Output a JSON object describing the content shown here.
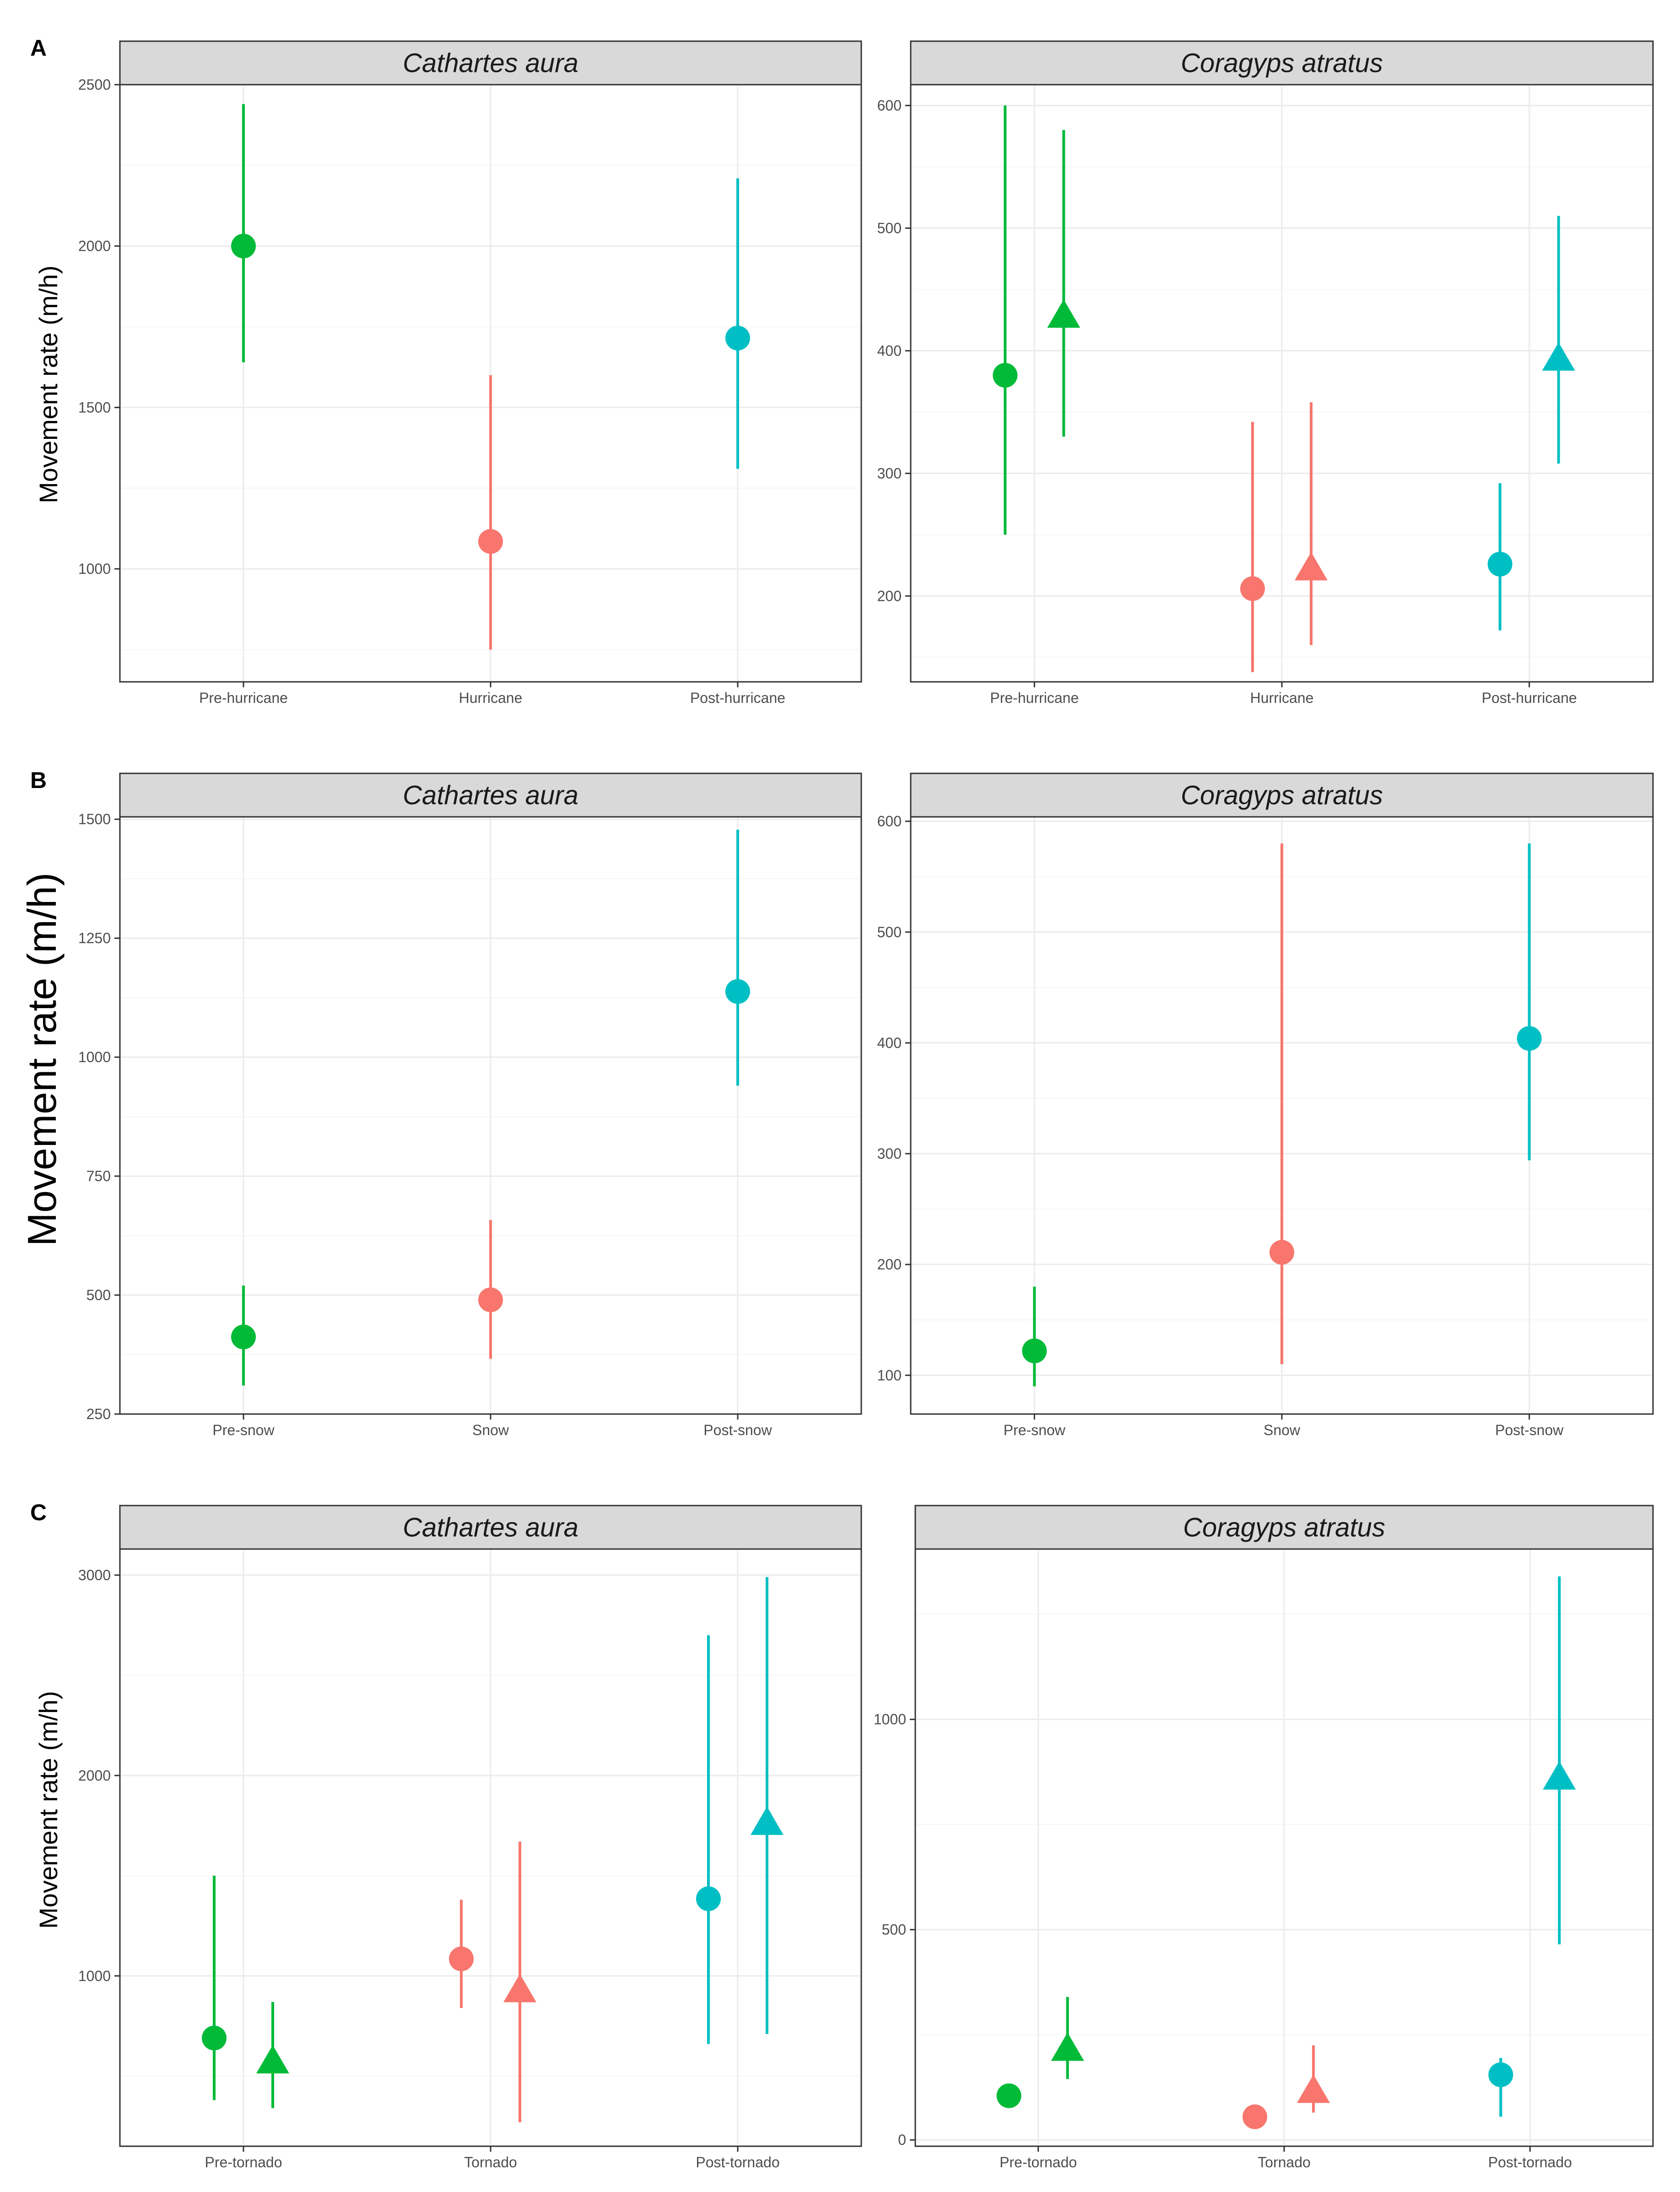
{
  "figure": {
    "row_labels": [
      "A",
      "B",
      "C"
    ],
    "ylabel_small": "Movement rate (m/h)",
    "ylabel_large": "Movement rate (m/h)"
  },
  "colors": {
    "pre": "#00BA38",
    "event": "#F8766D",
    "post": "#00BFC4",
    "strip_bg": "#D9D9D9",
    "panel_border": "#333333",
    "grid_major": "#EBEBEB",
    "grid_minor": "#F5F5F5",
    "tick_text": "#4D4D4D"
  },
  "chart_data": [
    {
      "type": "scatter",
      "subtype": "pointrange",
      "row": "A",
      "title": "Cathartes aura",
      "categories": [
        "Pre-hurricane",
        "Hurricane",
        "Post-hurricane"
      ],
      "ylim": [
        650,
        2500
      ],
      "yticks": [
        1000,
        1500,
        2000,
        2500
      ],
      "grid": true,
      "series": [
        {
          "shape": "circle",
          "points": [
            {
              "category": 0,
              "y": 2000,
              "lo": 1640,
              "hi": 2440
            },
            {
              "category": 1,
              "y": 1085,
              "lo": 750,
              "hi": 1600
            },
            {
              "category": 2,
              "y": 1715,
              "lo": 1310,
              "hi": 2210
            }
          ]
        }
      ]
    },
    {
      "type": "scatter",
      "subtype": "pointrange",
      "row": "A",
      "title": "Coragyps atratus",
      "categories": [
        "Pre-hurricane",
        "Hurricane",
        "Post-hurricane"
      ],
      "ylim": [
        130,
        617
      ],
      "yticks": [
        200,
        300,
        400,
        500,
        600
      ],
      "grid": true,
      "series": [
        {
          "shape": "circle",
          "points": [
            {
              "category": 0,
              "y": 380,
              "lo": 250,
              "hi": 600
            },
            {
              "category": 1,
              "y": 206,
              "lo": 138,
              "hi": 342
            },
            {
              "category": 2,
              "y": 226,
              "lo": 172,
              "hi": 292
            }
          ]
        },
        {
          "shape": "triangle",
          "points": [
            {
              "category": 0,
              "y": 428,
              "lo": 330,
              "hi": 580
            },
            {
              "category": 1,
              "y": 222,
              "lo": 160,
              "hi": 358
            },
            {
              "category": 2,
              "y": 393,
              "lo": 308,
              "hi": 510
            }
          ]
        }
      ]
    },
    {
      "type": "scatter",
      "subtype": "pointrange",
      "row": "B",
      "title": "Cathartes aura",
      "categories": [
        "Pre-snow",
        "Snow",
        "Post-snow"
      ],
      "ylim": [
        250,
        1505
      ],
      "yticks": [
        250,
        500,
        750,
        1000,
        1250,
        1500
      ],
      "grid": true,
      "series": [
        {
          "shape": "circle",
          "points": [
            {
              "category": 0,
              "y": 412,
              "lo": 310,
              "hi": 520
            },
            {
              "category": 1,
              "y": 490,
              "lo": 366,
              "hi": 658
            },
            {
              "category": 2,
              "y": 1138,
              "lo": 940,
              "hi": 1478
            }
          ]
        }
      ]
    },
    {
      "type": "scatter",
      "subtype": "pointrange",
      "row": "B",
      "title": "Coragyps atratus",
      "categories": [
        "Pre-snow",
        "Snow",
        "Post-snow"
      ],
      "ylim": [
        65,
        604
      ],
      "yticks": [
        100,
        200,
        300,
        400,
        500,
        600
      ],
      "grid": true,
      "series": [
        {
          "shape": "circle",
          "points": [
            {
              "category": 0,
              "y": 122,
              "lo": 90,
              "hi": 180
            },
            {
              "category": 1,
              "y": 211,
              "lo": 110,
              "hi": 580
            },
            {
              "category": 2,
              "y": 404,
              "lo": 294,
              "hi": 580
            }
          ]
        }
      ]
    },
    {
      "type": "scatter",
      "subtype": "pointrange",
      "row": "C",
      "title": "Cathartes aura",
      "categories": [
        "Pre-tornado",
        "Tornado",
        "Post-tornado"
      ],
      "ylim": [
        150,
        3130
      ],
      "yticks": [
        1000,
        2000,
        3000
      ],
      "grid": true,
      "series": [
        {
          "shape": "circle",
          "points": [
            {
              "category": 0,
              "y": 690,
              "lo": 380,
              "hi": 1500
            },
            {
              "category": 1,
              "y": 1085,
              "lo": 840,
              "hi": 1380
            },
            {
              "category": 2,
              "y": 1385,
              "lo": 660,
              "hi": 2700
            }
          ]
        },
        {
          "shape": "triangle",
          "points": [
            {
              "category": 0,
              "y": 570,
              "lo": 340,
              "hi": 870
            },
            {
              "category": 1,
              "y": 925,
              "lo": 270,
              "hi": 1670
            },
            {
              "category": 2,
              "y": 1760,
              "lo": 710,
              "hi": 2990
            }
          ]
        }
      ]
    },
    {
      "type": "scatter",
      "subtype": "pointrange",
      "row": "C",
      "title": "Coragyps atratus",
      "categories": [
        "Pre-tornado",
        "Tornado",
        "Post-tornado"
      ],
      "ylim": [
        -15,
        1405
      ],
      "yticks": [
        0,
        500,
        1000
      ],
      "grid": true,
      "series": [
        {
          "shape": "circle",
          "points": [
            {
              "category": 0,
              "y": 105,
              "lo": null,
              "hi": null
            },
            {
              "category": 1,
              "y": 55,
              "lo": null,
              "hi": null
            },
            {
              "category": 2,
              "y": 155,
              "lo": 55,
              "hi": 195
            }
          ]
        },
        {
          "shape": "triangle",
          "points": [
            {
              "category": 0,
              "y": 215,
              "lo": 145,
              "hi": 340
            },
            {
              "category": 1,
              "y": 115,
              "lo": 65,
              "hi": 225
            },
            {
              "category": 2,
              "y": 860,
              "lo": 465,
              "hi": 1340
            }
          ]
        }
      ]
    }
  ]
}
